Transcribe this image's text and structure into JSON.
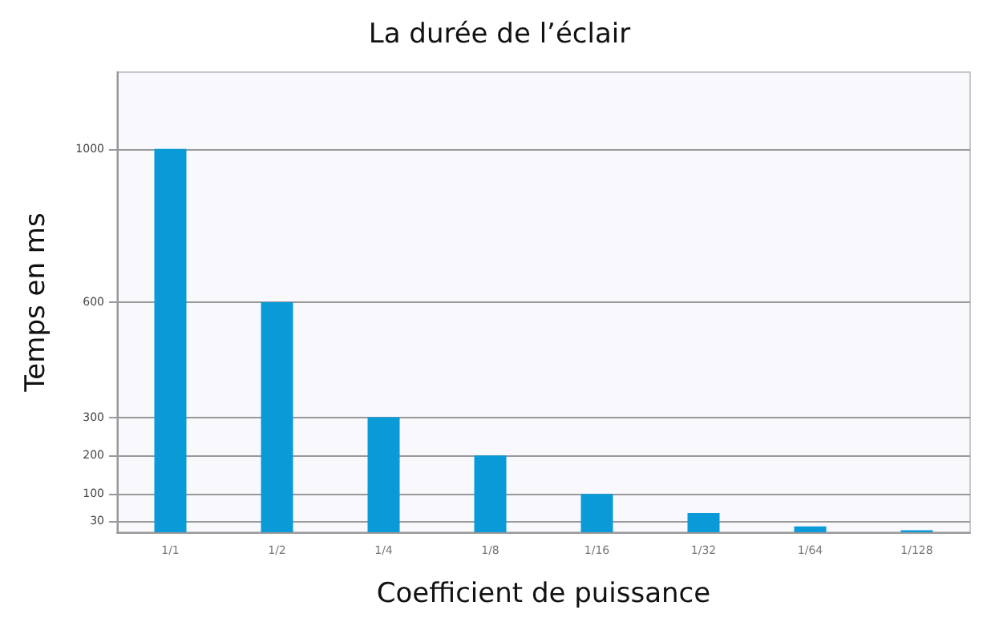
{
  "chart_data": {
    "type": "bar",
    "title": "La durée de l’éclair",
    "xlabel": "Coefficient de puissance",
    "ylabel": "Temps en ms",
    "categories": [
      "1/1",
      "1/2",
      "1/4",
      "1/8",
      "1/16",
      "1/32",
      "1/64",
      "1/128"
    ],
    "values": [
      1000,
      600,
      300,
      200,
      100,
      50,
      15,
      5
    ],
    "color": "#0a9ad8",
    "ylim": [
      0,
      1200
    ],
    "yticks": [
      30,
      100,
      200,
      300,
      600,
      1000
    ],
    "grid": "y"
  }
}
